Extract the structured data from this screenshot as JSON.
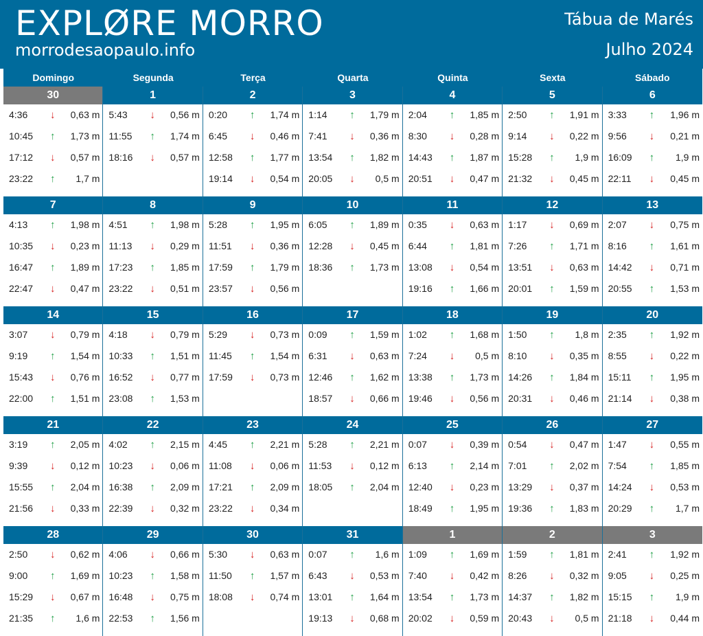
{
  "header": {
    "brand_title": "EXPLØRE MORRO",
    "brand_url": "morrodesaopaulo.info",
    "doc_title": "Tábua de Marés",
    "doc_subtitle": "Julho 2024"
  },
  "colors": {
    "header_bg": "#006b9c",
    "other_month_bg": "#7a7a7a",
    "arrow_up": "#1e9e45",
    "arrow_down": "#d51d1d"
  },
  "weekdays": [
    "Domingo",
    "Segunda",
    "Terça",
    "Quarta",
    "Quinta",
    "Sexta",
    "Sábado"
  ],
  "unit": "m",
  "weeks": [
    [
      {
        "day": "30",
        "other_month": true,
        "tides": [
          [
            "4:36",
            "down",
            "0,63"
          ],
          [
            "10:45",
            "up",
            "1,73"
          ],
          [
            "17:12",
            "down",
            "0,57"
          ],
          [
            "23:22",
            "up",
            "1,7"
          ]
        ]
      },
      {
        "day": "1",
        "other_month": false,
        "tides": [
          [
            "5:43",
            "down",
            "0,56"
          ],
          [
            "11:55",
            "up",
            "1,74"
          ],
          [
            "18:16",
            "down",
            "0,57"
          ]
        ]
      },
      {
        "day": "2",
        "other_month": false,
        "tides": [
          [
            "0:20",
            "up",
            "1,74"
          ],
          [
            "6:45",
            "down",
            "0,46"
          ],
          [
            "12:58",
            "up",
            "1,77"
          ],
          [
            "19:14",
            "down",
            "0,54"
          ]
        ]
      },
      {
        "day": "3",
        "other_month": false,
        "tides": [
          [
            "1:14",
            "up",
            "1,79"
          ],
          [
            "7:41",
            "down",
            "0,36"
          ],
          [
            "13:54",
            "up",
            "1,82"
          ],
          [
            "20:05",
            "down",
            "0,5"
          ]
        ]
      },
      {
        "day": "4",
        "other_month": false,
        "tides": [
          [
            "2:04",
            "up",
            "1,85"
          ],
          [
            "8:30",
            "down",
            "0,28"
          ],
          [
            "14:43",
            "up",
            "1,87"
          ],
          [
            "20:51",
            "down",
            "0,47"
          ]
        ]
      },
      {
        "day": "5",
        "other_month": false,
        "tides": [
          [
            "2:50",
            "up",
            "1,91"
          ],
          [
            "9:14",
            "down",
            "0,22"
          ],
          [
            "15:28",
            "up",
            "1,9"
          ],
          [
            "21:32",
            "down",
            "0,45"
          ]
        ]
      },
      {
        "day": "6",
        "other_month": false,
        "tides": [
          [
            "3:33",
            "up",
            "1,96"
          ],
          [
            "9:56",
            "down",
            "0,21"
          ],
          [
            "16:09",
            "up",
            "1,9"
          ],
          [
            "22:11",
            "down",
            "0,45"
          ]
        ]
      }
    ],
    [
      {
        "day": "7",
        "other_month": false,
        "tides": [
          [
            "4:13",
            "up",
            "1,98"
          ],
          [
            "10:35",
            "down",
            "0,23"
          ],
          [
            "16:47",
            "up",
            "1,89"
          ],
          [
            "22:47",
            "down",
            "0,47"
          ]
        ]
      },
      {
        "day": "8",
        "other_month": false,
        "tides": [
          [
            "4:51",
            "up",
            "1,98"
          ],
          [
            "11:13",
            "down",
            "0,29"
          ],
          [
            "17:23",
            "up",
            "1,85"
          ],
          [
            "23:22",
            "down",
            "0,51"
          ]
        ]
      },
      {
        "day": "9",
        "other_month": false,
        "tides": [
          [
            "5:28",
            "up",
            "1,95"
          ],
          [
            "11:51",
            "down",
            "0,36"
          ],
          [
            "17:59",
            "up",
            "1,79"
          ],
          [
            "23:57",
            "down",
            "0,56"
          ]
        ]
      },
      {
        "day": "10",
        "other_month": false,
        "tides": [
          [
            "6:05",
            "up",
            "1,89"
          ],
          [
            "12:28",
            "down",
            "0,45"
          ],
          [
            "18:36",
            "up",
            "1,73"
          ]
        ]
      },
      {
        "day": "11",
        "other_month": false,
        "tides": [
          [
            "0:35",
            "down",
            "0,63"
          ],
          [
            "6:44",
            "up",
            "1,81"
          ],
          [
            "13:08",
            "down",
            "0,54"
          ],
          [
            "19:16",
            "up",
            "1,66"
          ]
        ]
      },
      {
        "day": "12",
        "other_month": false,
        "tides": [
          [
            "1:17",
            "down",
            "0,69"
          ],
          [
            "7:26",
            "up",
            "1,71"
          ],
          [
            "13:51",
            "down",
            "0,63"
          ],
          [
            "20:01",
            "up",
            "1,59"
          ]
        ]
      },
      {
        "day": "13",
        "other_month": false,
        "tides": [
          [
            "2:07",
            "down",
            "0,75"
          ],
          [
            "8:16",
            "up",
            "1,61"
          ],
          [
            "14:42",
            "down",
            "0,71"
          ],
          [
            "20:55",
            "up",
            "1,53"
          ]
        ]
      }
    ],
    [
      {
        "day": "14",
        "other_month": false,
        "tides": [
          [
            "3:07",
            "down",
            "0,79"
          ],
          [
            "9:19",
            "up",
            "1,54"
          ],
          [
            "15:43",
            "down",
            "0,76"
          ],
          [
            "22:00",
            "up",
            "1,51"
          ]
        ]
      },
      {
        "day": "15",
        "other_month": false,
        "tides": [
          [
            "4:18",
            "down",
            "0,79"
          ],
          [
            "10:33",
            "up",
            "1,51"
          ],
          [
            "16:52",
            "down",
            "0,77"
          ],
          [
            "23:08",
            "up",
            "1,53"
          ]
        ]
      },
      {
        "day": "16",
        "other_month": false,
        "tides": [
          [
            "5:29",
            "down",
            "0,73"
          ],
          [
            "11:45",
            "up",
            "1,54"
          ],
          [
            "17:59",
            "down",
            "0,73"
          ]
        ]
      },
      {
        "day": "17",
        "other_month": false,
        "tides": [
          [
            "0:09",
            "up",
            "1,59"
          ],
          [
            "6:31",
            "down",
            "0,63"
          ],
          [
            "12:46",
            "up",
            "1,62"
          ],
          [
            "18:57",
            "down",
            "0,66"
          ]
        ]
      },
      {
        "day": "18",
        "other_month": false,
        "tides": [
          [
            "1:02",
            "up",
            "1,68"
          ],
          [
            "7:24",
            "down",
            "0,5"
          ],
          [
            "13:38",
            "up",
            "1,73"
          ],
          [
            "19:46",
            "down",
            "0,56"
          ]
        ]
      },
      {
        "day": "19",
        "other_month": false,
        "tides": [
          [
            "1:50",
            "up",
            "1,8"
          ],
          [
            "8:10",
            "down",
            "0,35"
          ],
          [
            "14:26",
            "up",
            "1,84"
          ],
          [
            "20:31",
            "down",
            "0,46"
          ]
        ]
      },
      {
        "day": "20",
        "other_month": false,
        "tides": [
          [
            "2:35",
            "up",
            "1,92"
          ],
          [
            "8:55",
            "down",
            "0,22"
          ],
          [
            "15:11",
            "up",
            "1,95"
          ],
          [
            "21:14",
            "down",
            "0,38"
          ]
        ]
      }
    ],
    [
      {
        "day": "21",
        "other_month": false,
        "tides": [
          [
            "3:19",
            "up",
            "2,05"
          ],
          [
            "9:39",
            "down",
            "0,12"
          ],
          [
            "15:55",
            "up",
            "2,04"
          ],
          [
            "21:56",
            "down",
            "0,33"
          ]
        ]
      },
      {
        "day": "22",
        "other_month": false,
        "tides": [
          [
            "4:02",
            "up",
            "2,15"
          ],
          [
            "10:23",
            "down",
            "0,06"
          ],
          [
            "16:38",
            "up",
            "2,09"
          ],
          [
            "22:39",
            "down",
            "0,32"
          ]
        ]
      },
      {
        "day": "23",
        "other_month": false,
        "tides": [
          [
            "4:45",
            "up",
            "2,21"
          ],
          [
            "11:08",
            "down",
            "0,06"
          ],
          [
            "17:21",
            "up",
            "2,09"
          ],
          [
            "23:22",
            "down",
            "0,34"
          ]
        ]
      },
      {
        "day": "24",
        "other_month": false,
        "tides": [
          [
            "5:28",
            "up",
            "2,21"
          ],
          [
            "11:53",
            "down",
            "0,12"
          ],
          [
            "18:05",
            "up",
            "2,04"
          ]
        ]
      },
      {
        "day": "25",
        "other_month": false,
        "tides": [
          [
            "0:07",
            "down",
            "0,39"
          ],
          [
            "6:13",
            "up",
            "2,14"
          ],
          [
            "12:40",
            "down",
            "0,23"
          ],
          [
            "18:49",
            "up",
            "1,95"
          ]
        ]
      },
      {
        "day": "26",
        "other_month": false,
        "tides": [
          [
            "0:54",
            "down",
            "0,47"
          ],
          [
            "7:01",
            "up",
            "2,02"
          ],
          [
            "13:29",
            "down",
            "0,37"
          ],
          [
            "19:36",
            "up",
            "1,83"
          ]
        ]
      },
      {
        "day": "27",
        "other_month": false,
        "tides": [
          [
            "1:47",
            "down",
            "0,55"
          ],
          [
            "7:54",
            "up",
            "1,85"
          ],
          [
            "14:24",
            "down",
            "0,53"
          ],
          [
            "20:29",
            "up",
            "1,7"
          ]
        ]
      }
    ],
    [
      {
        "day": "28",
        "other_month": false,
        "tides": [
          [
            "2:50",
            "down",
            "0,62"
          ],
          [
            "9:00",
            "up",
            "1,69"
          ],
          [
            "15:29",
            "down",
            "0,67"
          ],
          [
            "21:35",
            "up",
            "1,6"
          ]
        ]
      },
      {
        "day": "29",
        "other_month": false,
        "tides": [
          [
            "4:06",
            "down",
            "0,66"
          ],
          [
            "10:23",
            "up",
            "1,58"
          ],
          [
            "16:48",
            "down",
            "0,75"
          ],
          [
            "22:53",
            "up",
            "1,56"
          ]
        ]
      },
      {
        "day": "30",
        "other_month": false,
        "tides": [
          [
            "5:30",
            "down",
            "0,63"
          ],
          [
            "11:50",
            "up",
            "1,57"
          ],
          [
            "18:08",
            "down",
            "0,74"
          ]
        ]
      },
      {
        "day": "31",
        "other_month": false,
        "tides": [
          [
            "0:07",
            "up",
            "1,6"
          ],
          [
            "6:43",
            "down",
            "0,53"
          ],
          [
            "13:01",
            "up",
            "1,64"
          ],
          [
            "19:13",
            "down",
            "0,68"
          ]
        ]
      },
      {
        "day": "1",
        "other_month": true,
        "tides": [
          [
            "1:09",
            "up",
            "1,69"
          ],
          [
            "7:40",
            "down",
            "0,42"
          ],
          [
            "13:54",
            "up",
            "1,73"
          ],
          [
            "20:02",
            "down",
            "0,59"
          ]
        ]
      },
      {
        "day": "2",
        "other_month": true,
        "tides": [
          [
            "1:59",
            "up",
            "1,81"
          ],
          [
            "8:26",
            "down",
            "0,32"
          ],
          [
            "14:37",
            "up",
            "1,82"
          ],
          [
            "20:43",
            "down",
            "0,5"
          ]
        ]
      },
      {
        "day": "3",
        "other_month": true,
        "tides": [
          [
            "2:41",
            "up",
            "1,92"
          ],
          [
            "9:05",
            "down",
            "0,25"
          ],
          [
            "15:15",
            "up",
            "1,9"
          ],
          [
            "21:18",
            "down",
            "0,44"
          ]
        ]
      }
    ]
  ]
}
